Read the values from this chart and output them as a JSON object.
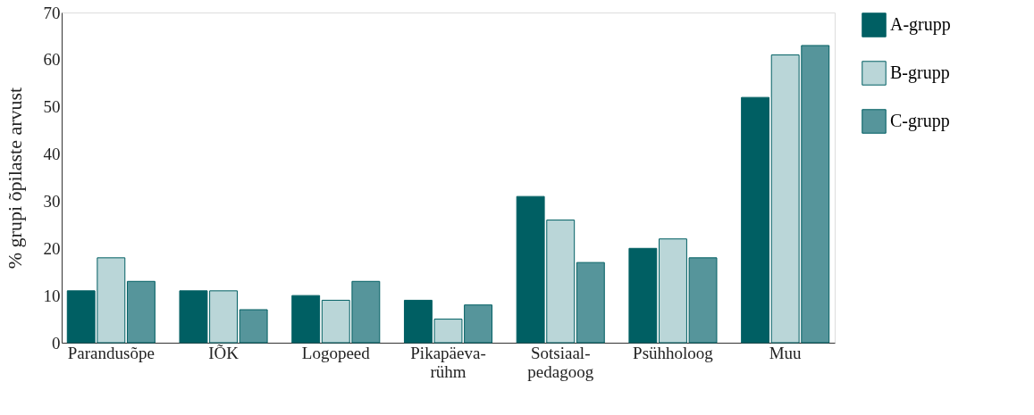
{
  "chart_data": {
    "type": "bar",
    "ylabel": "% grupi õpilaste arvust",
    "categories": [
      "Parandusõpe",
      "IÕK",
      "Logopeed",
      "Pikapäeva-\nrühm",
      "Sotsiaal-\npedagoog",
      "Psühholoog",
      "Muu"
    ],
    "series": [
      {
        "name": "A-grupp",
        "color": "#005f63",
        "values": [
          11,
          11,
          10,
          9,
          31,
          20,
          52
        ]
      },
      {
        "name": "B-grupp",
        "color": "#bad6d8",
        "values": [
          18,
          11,
          9,
          5,
          26,
          22,
          61
        ]
      },
      {
        "name": "C-grupp",
        "color": "#56959b",
        "values": [
          13,
          7,
          13,
          8,
          17,
          18,
          63
        ]
      }
    ],
    "ylim": [
      0,
      70
    ],
    "yticks": [
      0,
      10,
      20,
      30,
      40,
      50,
      60,
      70
    ],
    "grid": false,
    "legend": "right"
  }
}
